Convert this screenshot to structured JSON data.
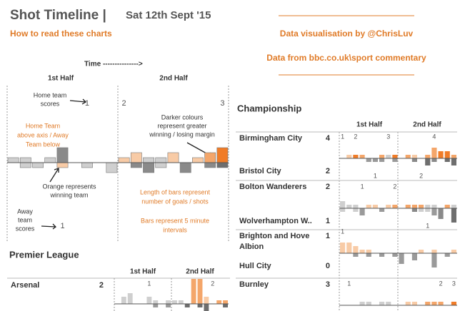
{
  "header": {
    "title": "Shot Timeline |",
    "date": "Sat 12th Sept '15",
    "how_to": "How to read these charts",
    "credit": "Data visualisation by @ChrisLuv",
    "source": "Data from bbc.co.uk\\sport commentary"
  },
  "guide": {
    "time": "Time --------------->",
    "halves": [
      "1st Half",
      "2nd Half"
    ],
    "home_scores": [
      "Home team",
      "scores"
    ],
    "away_scores": [
      "Away",
      "team",
      "scores"
    ],
    "darker": [
      "Darker colours",
      "represent greater",
      "winning / losing margin"
    ],
    "above": [
      "Home Team",
      "above axis / Away",
      "Team below"
    ],
    "orange": [
      "Orange represents",
      "winning team"
    ],
    "length": [
      "Length of bars represent",
      "number of goals / shots"
    ],
    "interval": [
      "Bars represent 5 minute",
      "intervals"
    ],
    "match": {
      "home_shots": [
        1,
        1,
        0,
        1,
        3,
        0,
        0,
        0,
        0,
        1,
        2,
        1,
        1,
        2,
        0,
        1,
        2,
        3
      ],
      "home_colors": [
        "#cfcfcf",
        "#cfcfcf",
        null,
        "#cfcfcf",
        "#8a8a8a",
        null,
        null,
        null,
        null,
        "#f8cba6",
        "#f8cba6",
        "#cfcfcf",
        "#cfcfcf",
        "#f8cba6",
        null,
        "#f8cba6",
        "#f4a66a",
        "#f07c28"
      ],
      "away_shots": [
        0,
        1,
        1,
        0,
        1,
        0,
        1,
        0,
        2,
        0,
        1,
        2,
        1,
        0,
        2,
        0,
        1,
        1
      ],
      "away_colors": [
        null,
        "#cfcfcf",
        "#cfcfcf",
        null,
        "#f8cba6",
        null,
        "#cfcfcf",
        null,
        "#cfcfcf",
        null,
        "#8a8a8a",
        "#8a8a8a",
        "#cfcfcf",
        null,
        "#8a8a8a",
        null,
        "#8a8a8a",
        "#6e6e6e"
      ],
      "home_goals": [
        null,
        null,
        null,
        null,
        null,
        null,
        1,
        null,
        null,
        2,
        null,
        null,
        null,
        null,
        null,
        null,
        null,
        3
      ],
      "away_goals": [
        null,
        null,
        null,
        null,
        1,
        null,
        null,
        null,
        null,
        null,
        null,
        null,
        null,
        null,
        null,
        null,
        null,
        null
      ]
    }
  },
  "premier_league": {
    "title": "Premier League",
    "halves": [
      "1st Half",
      "2nd Half"
    ],
    "matches": [
      {
        "home": "Arsenal",
        "home_score": 2,
        "home_shots": [
          0,
          2,
          3,
          0,
          0,
          2,
          1,
          0,
          1,
          1,
          1,
          0,
          7,
          7,
          2,
          0,
          1,
          1
        ],
        "home_colors": [
          null,
          "#cfcfcf",
          "#cfcfcf",
          null,
          null,
          "#cfcfcf",
          "#cfcfcf",
          null,
          "#cfcfcf",
          "#cfcfcf",
          "#cfcfcf",
          null,
          "#f4a66a",
          "#f4a66a",
          "#f8cba6",
          null,
          "#f4a66a",
          "#f4a66a"
        ],
        "away_shots": [
          0,
          0,
          0,
          0,
          0,
          0,
          1,
          0,
          1,
          0,
          0,
          1,
          0,
          1,
          2,
          0,
          0,
          1
        ],
        "away_colors": [
          null,
          null,
          null,
          null,
          null,
          null,
          "#9a9a9a",
          null,
          "#9a9a9a",
          null,
          null,
          "#6e6e6e",
          null,
          "#6e6e6e",
          "#6e6e6e",
          null,
          null,
          "#6e6e6e"
        ],
        "home_goals": [
          null,
          null,
          null,
          null,
          null,
          1,
          null,
          null,
          null,
          null,
          null,
          null,
          null,
          null,
          null,
          2,
          null,
          null
        ]
      }
    ]
  },
  "championship": {
    "title": "Championship",
    "halves": [
      "1st Half",
      "2nd Half"
    ],
    "matches": [
      {
        "home": "Birmingham City",
        "home_score": 4,
        "away": "Bristol City",
        "away_score": 2,
        "home_shots": [
          0,
          1,
          1,
          1,
          0,
          0,
          1,
          1,
          1,
          0,
          1,
          1,
          0,
          1,
          3,
          2,
          2,
          1
        ],
        "home_colors": [
          null,
          "#f8cba6",
          "#f07c28",
          "#f4a66a",
          null,
          null,
          "#f4a66a",
          "#cfcfcf",
          "#f07c28",
          null,
          "#f4a66a",
          "#f8cba6",
          null,
          "#f4a66a",
          "#f4a66a",
          "#f07c28",
          "#f07c28",
          "#f4a66a"
        ],
        "away_shots": [
          0,
          0,
          0,
          0,
          1,
          1,
          1,
          0,
          1,
          0,
          0,
          1,
          0,
          2,
          1,
          0,
          1,
          2
        ],
        "away_colors": [
          null,
          null,
          null,
          null,
          "#9a9a9a",
          "#9a9a9a",
          "#9a9a9a",
          null,
          "#9a9a9a",
          null,
          null,
          "#8a8a8a",
          null,
          "#6e6e6e",
          "#8a8a8a",
          null,
          "#6e6e6e",
          "#6e6e6e"
        ],
        "home_goals": [
          1,
          null,
          2,
          null,
          null,
          null,
          null,
          3,
          null,
          null,
          null,
          null,
          null,
          null,
          4,
          null,
          null,
          null
        ],
        "away_goals": [
          null,
          null,
          null,
          null,
          null,
          1,
          null,
          null,
          null,
          null,
          null,
          null,
          2,
          null,
          null,
          null,
          null,
          null
        ]
      },
      {
        "home": "Bolton Wanderers",
        "home_score": 2,
        "away": "Wolverhampton W..",
        "away_score": 1,
        "home_shots": [
          2,
          1,
          1,
          0,
          1,
          1,
          0,
          1,
          1,
          0,
          1,
          1,
          1,
          1,
          1,
          0,
          1,
          1
        ],
        "home_colors": [
          "#cfcfcf",
          "#cfcfcf",
          "#cfcfcf",
          null,
          "#f8cba6",
          "#f8cba6",
          null,
          "#f8cba6",
          "#f4a66a",
          null,
          "#f4a66a",
          "#f4a66a",
          "#f4a66a",
          "#cfcfcf",
          "#cfcfcf",
          null,
          "#f4a66a",
          "#cfcfcf"
        ],
        "away_shots": [
          1,
          0,
          1,
          2,
          0,
          0,
          1,
          0,
          0,
          0,
          0,
          1,
          1,
          1,
          2,
          3,
          0,
          4
        ],
        "away_colors": [
          "#cfcfcf",
          null,
          "#cfcfcf",
          "#9a9a9a",
          null,
          null,
          "#9a9a9a",
          null,
          null,
          null,
          null,
          "#8a8a8a",
          "#cfcfcf",
          "#cfcfcf",
          "#9a9a9a",
          "#8a8a8a",
          null,
          "#6e6e6e"
        ],
        "home_goals": [
          null,
          null,
          null,
          1,
          null,
          null,
          null,
          null,
          2,
          null,
          null,
          null,
          null,
          null,
          null,
          null,
          null,
          null
        ],
        "away_goals": [
          null,
          null,
          null,
          null,
          null,
          null,
          null,
          null,
          null,
          null,
          null,
          null,
          null,
          1,
          null,
          null,
          null,
          null
        ]
      },
      {
        "home": "Brighton and Hove Albion",
        "home_score": 1,
        "away": "Hull City",
        "away_score": 0,
        "home_shots": [
          3,
          3,
          2,
          1,
          1,
          0,
          0,
          0,
          0,
          0,
          0,
          0,
          1,
          0,
          1,
          0,
          0,
          1
        ],
        "home_colors": [
          "#f8cba6",
          "#f8cba6",
          "#f8cba6",
          "#f8cba6",
          "#f8cba6",
          null,
          null,
          null,
          null,
          null,
          null,
          null,
          "#f8cba6",
          null,
          "#f8cba6",
          null,
          null,
          "#f8cba6"
        ],
        "away_shots": [
          0,
          0,
          1,
          0,
          1,
          0,
          1,
          0,
          1,
          3,
          0,
          2,
          0,
          0,
          4,
          0,
          1,
          0
        ],
        "away_colors": [
          null,
          null,
          "#9a9a9a",
          null,
          "#9a9a9a",
          null,
          "#9a9a9a",
          null,
          "#9a9a9a",
          "#9a9a9a",
          null,
          "#9a9a9a",
          null,
          null,
          "#9a9a9a",
          null,
          "#9a9a9a",
          null
        ],
        "home_goals": [
          1,
          null,
          null,
          null,
          null,
          null,
          null,
          null,
          null,
          null,
          null,
          null,
          null,
          null,
          null,
          null,
          null,
          null
        ]
      },
      {
        "home": "Burnley",
        "home_score": 3,
        "home_shots": [
          0,
          0,
          0,
          1,
          1,
          0,
          1,
          1,
          0,
          0,
          1,
          1,
          0,
          1,
          1,
          1,
          0,
          1
        ],
        "home_colors": [
          null,
          null,
          null,
          "#cfcfcf",
          "#cfcfcf",
          null,
          "#cfcfcf",
          "#cfcfcf",
          null,
          null,
          "#f8cba6",
          "#f8cba6",
          null,
          "#f4a66a",
          "#f4a66a",
          "#f4a66a",
          null,
          "#f07c28"
        ],
        "away_shots": [
          0,
          0,
          0,
          0,
          0,
          0,
          0,
          0,
          0,
          0,
          0,
          0,
          0,
          0,
          0,
          0,
          0,
          0
        ],
        "away_colors": [
          null,
          null,
          null,
          null,
          null,
          null,
          null,
          null,
          null,
          null,
          null,
          null,
          null,
          null,
          null,
          null,
          null,
          null
        ],
        "home_goals": [
          null,
          1,
          null,
          null,
          null,
          null,
          null,
          null,
          null,
          null,
          null,
          null,
          null,
          null,
          null,
          2,
          null,
          3
        ]
      }
    ]
  }
}
